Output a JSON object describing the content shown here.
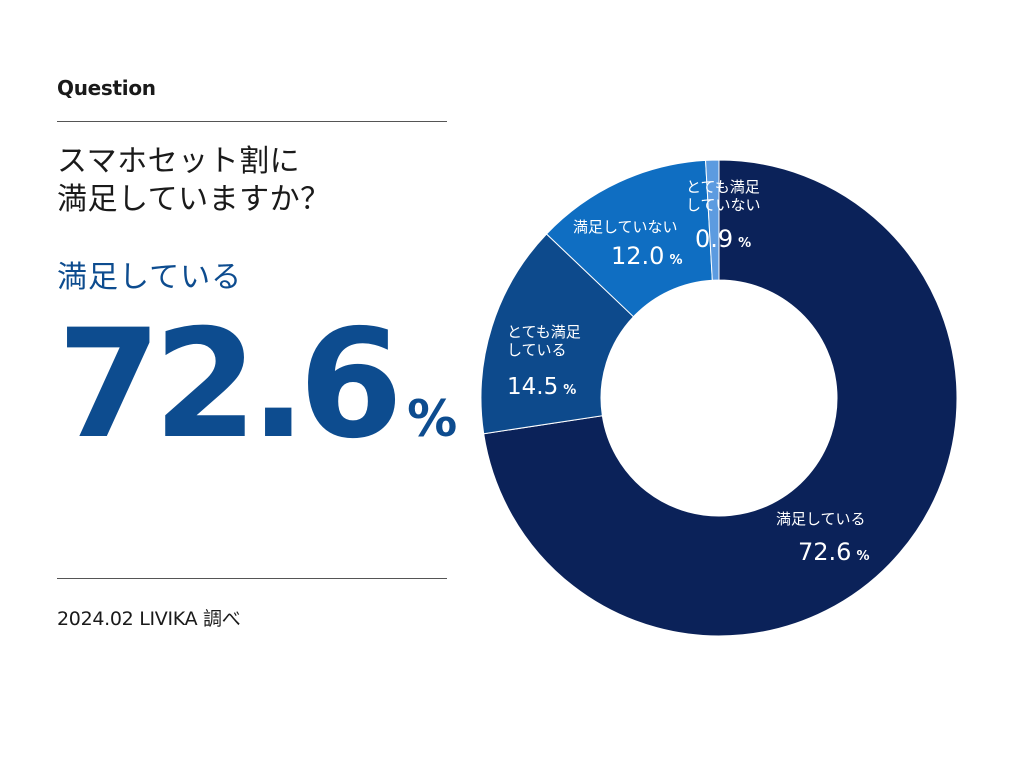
{
  "question_label": "Question",
  "question_lines": [
    "スマホセット割に",
    "満足していますか？"
  ],
  "answer_label": "満足している",
  "highlight_value": "72.6",
  "highlight_unit": "%",
  "source": "2024.02 LIVIKA 調べ",
  "chart_data": {
    "type": "pie",
    "variant": "donut",
    "unit": "%",
    "slices": [
      {
        "label": "満足している",
        "label_lines": [
          "満足している"
        ],
        "value": 72.6,
        "display": "72.6",
        "color": "#0b2259"
      },
      {
        "label": "とても満足している",
        "label_lines": [
          "とても満足",
          "している"
        ],
        "value": 14.5,
        "display": "14.5",
        "color": "#0d4a8c"
      },
      {
        "label": "満足していない",
        "label_lines": [
          "満足していない"
        ],
        "value": 12.0,
        "display": "12.0",
        "color": "#0f6ec2"
      },
      {
        "label": "とても満足していない",
        "label_lines": [
          "とても満足",
          "していない"
        ],
        "value": 0.9,
        "display": "0.9",
        "color": "#5c9be0"
      }
    ]
  }
}
